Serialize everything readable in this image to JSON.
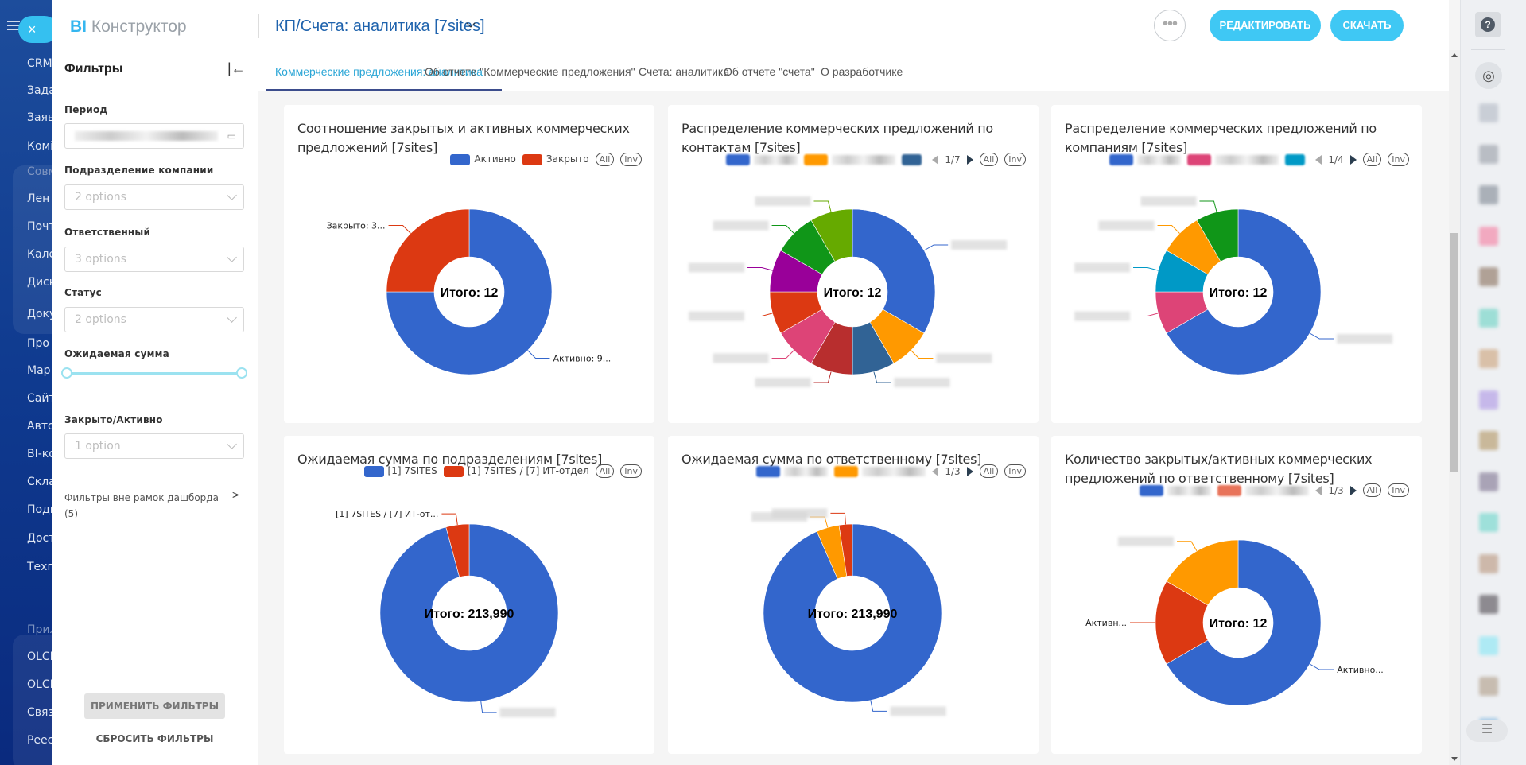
{
  "nav": {
    "items": [
      "CRM",
      "Зада",
      "Заяв",
      "Комі",
      "Совм",
      "Лент",
      "Почт",
      "Кале",
      "Диск",
      "Доку",
      "Про",
      "Мар",
      "Сайт",
      "Авто",
      "BI-ко",
      "Скла",
      "Подп",
      "Дост",
      "Техп",
      "Прил",
      "OLCH",
      "OLCH",
      "Связ",
      "Реес"
    ],
    "close_icon": "×"
  },
  "app": {
    "logo_prefix": "BI",
    "logo_rest": "Конструктор"
  },
  "filters": {
    "title": "Фильтры",
    "collapse_icon": "|←",
    "period_label": "Период",
    "department_label": "Подразделение компании",
    "department_value": "2 options",
    "responsible_label": "Ответственный",
    "responsible_value": "3 options",
    "status_label": "Статус",
    "status_value": "2 options",
    "amount_label": "Ожидаемая сумма",
    "amount_range": [
      0,
      1
    ],
    "closed_label": "Закрыто/Активно",
    "closed_value": "1 option",
    "outside_label": "Фильтры вне рамок дашборда",
    "outside_count": "(5)",
    "outside_chevron": ">",
    "apply": "ПРИМЕНИТЬ ФИЛЬТРЫ",
    "reset": "СБРОСИТЬ ФИЛЬТРЫ"
  },
  "header": {
    "title": "КП/Счета: аналитика [7sites]",
    "edit": "РЕДАКТИРОВАТЬ",
    "download": "СКАЧАТЬ",
    "more": "•••",
    "tabs": [
      "Коммерческие предложения: аналитика",
      "Об отчете \"Коммерческие предложения\"",
      "Счета: аналитика",
      "Об отчете \"счета\"",
      "О разработчике"
    ],
    "active_tab": 0
  },
  "rail": {
    "help": "?",
    "radar": "◎",
    "list": "☰"
  },
  "controls": {
    "all": "All",
    "inv": "Inv"
  },
  "chart_data": [
    {
      "type": "pie",
      "donut": true,
      "title": "Соотношение закрытых и активных коммерческих предложений [7sites]",
      "center_label": "Итого: 12",
      "legend": [
        {
          "name": "Активно",
          "color": "#3366cc"
        },
        {
          "name": "Закрыто",
          "color": "#dc3912"
        }
      ],
      "slices": [
        {
          "name": "Активно",
          "value": 9,
          "color": "#3366cc",
          "label": "Активно: 9..."
        },
        {
          "name": "Закрыто",
          "value": 3,
          "color": "#dc3912",
          "label": "Закрыто: 3..."
        }
      ]
    },
    {
      "type": "pie",
      "donut": true,
      "title": "Распределение коммерческих предложений по контактам [7sites]",
      "center_label": "Итого: 12",
      "legend_page": "1/7",
      "legend_colors": [
        "#3366cc",
        "#ff9900",
        "#316395"
      ],
      "slices": [
        {
          "value": 4,
          "color": "#3366cc"
        },
        {
          "value": 1,
          "color": "#ff9900"
        },
        {
          "value": 1,
          "color": "#316395"
        },
        {
          "value": 1,
          "color": "#b82e2e"
        },
        {
          "value": 1,
          "color": "#dd4477"
        },
        {
          "value": 1,
          "color": "#dc3912"
        },
        {
          "value": 1,
          "color": "#990099"
        },
        {
          "value": 1,
          "color": "#109618"
        },
        {
          "value": 1,
          "color": "#66aa00"
        }
      ]
    },
    {
      "type": "pie",
      "donut": true,
      "title": "Распределение коммерческих предложений по компаниям [7sites]",
      "center_label": "Итого: 12",
      "legend_page": "1/4",
      "legend_colors": [
        "#3366cc",
        "#dd4477",
        "#0099c6"
      ],
      "slices": [
        {
          "value": 8,
          "color": "#3366cc"
        },
        {
          "value": 1,
          "color": "#dd4477"
        },
        {
          "value": 1,
          "color": "#0099c6"
        },
        {
          "value": 1,
          "color": "#ff9900"
        },
        {
          "value": 1,
          "color": "#109618"
        }
      ]
    },
    {
      "type": "pie",
      "donut": true,
      "title": "Ожидаемая сумма по подразделениям [7sites]",
      "center_label": "Итого: 213,990",
      "legend": [
        {
          "name": "[1] 7SITES",
          "color": "#3366cc"
        },
        {
          "name": "[1] 7SITES / [7] ИТ-отдел",
          "color": "#dc3912"
        }
      ],
      "slices": [
        {
          "name": "[1] 7SITES",
          "value": 205000,
          "color": "#3366cc"
        },
        {
          "name": "[1] 7SITES / [7] ИТ-отдел",
          "value": 8990,
          "color": "#dc3912",
          "label": "[1] 7SITES / [7] ИТ-от..."
        }
      ]
    },
    {
      "type": "pie",
      "donut": true,
      "title": "Ожидаемая сумма по ответственному [7sites]",
      "center_label": "Итого: 213,990",
      "legend_page": "1/3",
      "legend_colors": [
        "#3366cc",
        "#ff9900"
      ],
      "slices": [
        {
          "value": 200000,
          "color": "#3366cc"
        },
        {
          "value": 8800,
          "color": "#ff9900"
        },
        {
          "value": 5190,
          "color": "#dc3912"
        }
      ]
    },
    {
      "type": "pie",
      "donut": true,
      "title": "Количество закрытых/активных коммерческих предложений по ответственному [7sites]",
      "center_label": "Итого: 12",
      "legend_page": "1/3",
      "legend_colors": [
        "#3366cc",
        "#e8735a"
      ],
      "slices": [
        {
          "value": 8,
          "color": "#3366cc",
          "label": "Активно..."
        },
        {
          "value": 2,
          "color": "#dc3912",
          "label": "Активн..."
        },
        {
          "value": 2,
          "color": "#ff9900"
        }
      ]
    }
  ]
}
